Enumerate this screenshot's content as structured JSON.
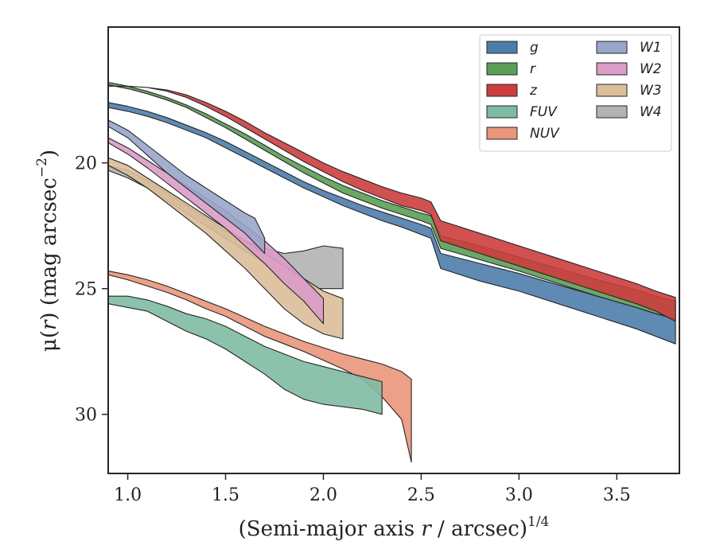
{
  "chart_data": {
    "type": "area",
    "xlabel": "(Semi-major axis r / arcsec)^1/4",
    "xlabel_parts": {
      "prefix": "(Semi-major axis ",
      "var": "r",
      "mid": " / arcsec)",
      "sup": "1/4"
    },
    "ylabel": "μ(r) (mag arcsec^-2)",
    "ylabel_parts": {
      "mu": "μ(",
      "var": "r",
      "close": ")",
      "rest": " (mag arcsec",
      "sup": "−2",
      "end": ")"
    },
    "xlim": [
      0.9,
      3.82
    ],
    "ylim": [
      32.35,
      14.6
    ],
    "y_inverted": true,
    "xticks": [
      1.0,
      1.5,
      2.0,
      2.5,
      3.0,
      3.5
    ],
    "xtick_labels": [
      "1.0",
      "1.5",
      "2.0",
      "2.5",
      "3.0",
      "3.5"
    ],
    "yticks": [
      20,
      25,
      30
    ],
    "ytick_labels": [
      "20",
      "25",
      "30"
    ],
    "grid": false,
    "legend_position": "top-right",
    "legend_columns": 2,
    "series": [
      {
        "name": "g",
        "color": "#4c7dab",
        "x": [
          0.9,
          1.0,
          1.1,
          1.2,
          1.3,
          1.4,
          1.5,
          1.6,
          1.7,
          1.8,
          1.9,
          2.0,
          2.1,
          2.2,
          2.3,
          2.4,
          2.5,
          2.55,
          2.6,
          2.8,
          3.0,
          3.2,
          3.4,
          3.6,
          3.7,
          3.8
        ],
        "y_bright": [
          17.6,
          17.75,
          17.95,
          18.2,
          18.5,
          18.8,
          19.15,
          19.55,
          19.95,
          20.35,
          20.75,
          21.1,
          21.4,
          21.7,
          21.95,
          22.2,
          22.45,
          22.6,
          23.6,
          24.0,
          24.4,
          24.85,
          25.3,
          25.75,
          26.0,
          26.2
        ],
        "y_faint": [
          17.8,
          17.95,
          18.15,
          18.4,
          18.7,
          19.0,
          19.4,
          19.8,
          20.2,
          20.6,
          21.0,
          21.35,
          21.7,
          22.0,
          22.3,
          22.55,
          22.85,
          23.0,
          24.2,
          24.7,
          25.1,
          25.6,
          26.1,
          26.6,
          26.9,
          27.2
        ]
      },
      {
        "name": "r",
        "color": "#5b9e55",
        "x": [
          0.9,
          1.0,
          1.1,
          1.2,
          1.3,
          1.4,
          1.5,
          1.6,
          1.7,
          1.8,
          1.9,
          2.0,
          2.1,
          2.2,
          2.3,
          2.4,
          2.5,
          2.55,
          2.6,
          2.8,
          3.0,
          3.2,
          3.4,
          3.6,
          3.7,
          3.8
        ],
        "y_bright": [
          16.8,
          16.95,
          17.15,
          17.4,
          17.7,
          18.05,
          18.45,
          18.85,
          19.3,
          19.75,
          20.15,
          20.55,
          20.9,
          21.2,
          21.5,
          21.75,
          22.0,
          22.1,
          22.9,
          23.3,
          23.75,
          24.2,
          24.65,
          25.05,
          25.3,
          25.5
        ],
        "y_faint": [
          16.9,
          17.05,
          17.25,
          17.5,
          17.8,
          18.2,
          18.6,
          19.05,
          19.5,
          19.95,
          20.4,
          20.8,
          21.2,
          21.5,
          21.8,
          22.05,
          22.3,
          22.45,
          23.4,
          23.85,
          24.3,
          24.8,
          25.3,
          25.75,
          26.0,
          26.2
        ]
      },
      {
        "name": "z",
        "color": "#cc3d3d",
        "x": [
          0.9,
          1.0,
          1.1,
          1.2,
          1.3,
          1.4,
          1.5,
          1.6,
          1.7,
          1.8,
          1.9,
          2.0,
          2.1,
          2.2,
          2.3,
          2.4,
          2.5,
          2.55,
          2.6,
          2.8,
          3.0,
          3.2,
          3.4,
          3.6,
          3.7,
          3.8
        ],
        "y_bright": [
          16.95,
          16.95,
          17.0,
          17.1,
          17.3,
          17.6,
          17.95,
          18.35,
          18.8,
          19.2,
          19.6,
          20.0,
          20.35,
          20.65,
          20.95,
          21.2,
          21.4,
          21.55,
          22.3,
          22.8,
          23.3,
          23.8,
          24.3,
          24.8,
          25.1,
          25.35
        ],
        "y_faint": [
          16.95,
          16.95,
          17.0,
          17.15,
          17.4,
          17.75,
          18.15,
          18.6,
          19.05,
          19.5,
          19.95,
          20.35,
          20.75,
          21.1,
          21.4,
          21.7,
          21.9,
          22.05,
          23.1,
          23.6,
          24.1,
          24.6,
          25.1,
          25.6,
          25.9,
          26.3
        ]
      },
      {
        "name": "FUV",
        "color": "#7fbba2",
        "x": [
          0.9,
          1.0,
          1.1,
          1.2,
          1.3,
          1.4,
          1.5,
          1.6,
          1.7,
          1.8,
          1.9,
          2.0,
          2.1,
          2.2,
          2.3
        ],
        "y_bright": [
          25.3,
          25.3,
          25.45,
          25.7,
          26.0,
          26.2,
          26.5,
          26.9,
          27.3,
          27.6,
          27.9,
          28.1,
          28.3,
          28.5,
          28.7
        ],
        "y_faint": [
          25.6,
          25.75,
          25.9,
          26.3,
          26.7,
          27.0,
          27.4,
          27.9,
          28.4,
          29.0,
          29.4,
          29.6,
          29.7,
          29.8,
          30.0
        ]
      },
      {
        "name": "NUV",
        "color": "#e9967a",
        "x": [
          0.9,
          1.0,
          1.1,
          1.2,
          1.3,
          1.4,
          1.5,
          1.6,
          1.7,
          1.8,
          1.9,
          2.0,
          2.1,
          2.2,
          2.3,
          2.4,
          2.45
        ],
        "y_bright": [
          24.3,
          24.45,
          24.65,
          24.9,
          25.2,
          25.5,
          25.8,
          26.15,
          26.5,
          26.8,
          27.1,
          27.35,
          27.6,
          27.8,
          28.0,
          28.3,
          28.6
        ],
        "y_faint": [
          24.45,
          24.65,
          24.9,
          25.15,
          25.45,
          25.8,
          26.1,
          26.5,
          26.9,
          27.2,
          27.5,
          27.85,
          28.2,
          28.6,
          29.3,
          30.2,
          31.9
        ]
      },
      {
        "name": "W1",
        "color": "#98a6c9",
        "x": [
          0.9,
          1.0,
          1.1,
          1.2,
          1.3,
          1.4,
          1.5,
          1.6,
          1.65,
          1.7
        ],
        "y_bright": [
          18.3,
          18.7,
          19.3,
          19.9,
          20.5,
          21.0,
          21.5,
          22.0,
          22.2,
          23.0
        ],
        "y_faint": [
          18.55,
          19.0,
          19.7,
          20.4,
          21.0,
          21.6,
          22.2,
          22.8,
          23.2,
          23.6
        ]
      },
      {
        "name": "W2",
        "color": "#dc9cc8",
        "x": [
          0.9,
          1.0,
          1.1,
          1.2,
          1.3,
          1.4,
          1.5,
          1.6,
          1.7,
          1.8,
          1.9,
          2.0
        ],
        "y_bright": [
          19.0,
          19.4,
          19.9,
          20.4,
          20.9,
          21.4,
          21.9,
          22.5,
          23.1,
          23.8,
          24.6,
          25.4
        ],
        "y_faint": [
          19.2,
          19.65,
          20.2,
          20.8,
          21.4,
          22.0,
          22.6,
          23.3,
          24.0,
          24.8,
          25.5,
          26.4
        ]
      },
      {
        "name": "W3",
        "color": "#dbbe9a",
        "x": [
          0.9,
          1.0,
          1.1,
          1.2,
          1.3,
          1.4,
          1.5,
          1.6,
          1.7,
          1.8,
          1.9,
          2.0,
          2.1
        ],
        "y_bright": [
          19.8,
          20.1,
          20.6,
          21.1,
          21.6,
          22.1,
          22.6,
          23.1,
          23.6,
          24.1,
          24.6,
          25.1,
          25.4
        ],
        "y_faint": [
          20.1,
          20.5,
          21.0,
          21.6,
          22.2,
          22.8,
          23.5,
          24.2,
          25.0,
          25.8,
          26.4,
          26.8,
          27.0
        ]
      },
      {
        "name": "W4",
        "color": "#b3b3b3",
        "x": [
          0.9,
          1.0,
          1.1,
          1.2,
          1.3,
          1.4,
          1.5,
          1.6,
          1.7,
          1.8,
          1.9,
          2.0,
          2.1
        ],
        "y_bright": [
          20.1,
          20.3,
          20.7,
          21.2,
          21.7,
          22.2,
          22.7,
          23.1,
          23.4,
          23.6,
          23.5,
          23.3,
          23.4
        ],
        "y_faint": [
          20.3,
          20.6,
          21.0,
          21.5,
          22.0,
          22.5,
          23.0,
          23.5,
          24.0,
          24.6,
          25.0,
          25.0,
          25.0
        ]
      }
    ],
    "legend_layout": [
      [
        "g",
        "W1"
      ],
      [
        "r",
        "W2"
      ],
      [
        "z",
        "W3"
      ],
      [
        "FUV",
        "W4"
      ],
      [
        "NUV",
        null
      ]
    ]
  }
}
